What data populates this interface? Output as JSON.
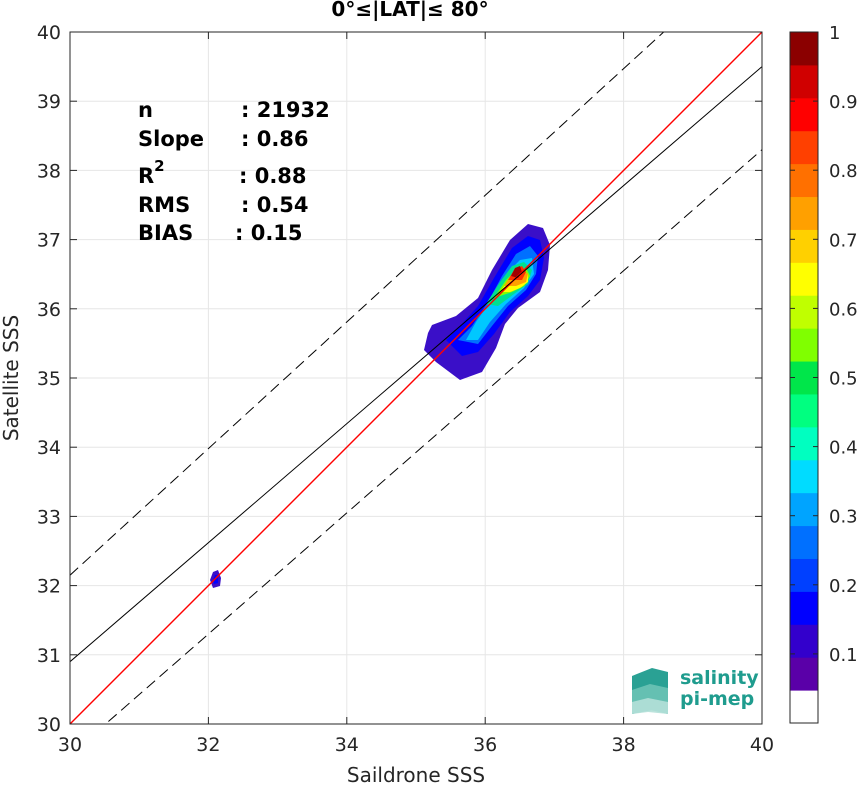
{
  "chart_data": {
    "type": "heatmap",
    "title": "0°≤|LAT|≤ 80°",
    "xlabel": "Saildrone SSS",
    "ylabel": "Satellite SSS",
    "xlim": [
      30,
      40
    ],
    "ylim": [
      30,
      40
    ],
    "x_ticks": [
      30,
      32,
      34,
      36,
      38,
      40
    ],
    "y_ticks": [
      30,
      31,
      32,
      33,
      34,
      35,
      36,
      37,
      38,
      39,
      40
    ],
    "grid": true,
    "stats": [
      {
        "label": "n",
        "value": ": 21932"
      },
      {
        "label": "Slope",
        "value": ": 0.86"
      },
      {
        "label": "R",
        "superscript": "2",
        "value": ": 0.88"
      },
      {
        "label": "RMS",
        "value": ": 0.54"
      },
      {
        "label": "BIAS",
        "value": ": 0.15"
      }
    ],
    "lines": [
      {
        "name": "one-to-one",
        "color": "#ff0000",
        "style": "solid",
        "points": [
          [
            30,
            30
          ],
          [
            40,
            40
          ]
        ]
      },
      {
        "name": "regression",
        "color": "#000000",
        "style": "solid",
        "points": [
          [
            30,
            30.9
          ],
          [
            40,
            39.5
          ]
        ]
      },
      {
        "name": "upper-bound",
        "color": "#000000",
        "style": "dashed",
        "points": [
          [
            30,
            32.15
          ],
          [
            40,
            41.3
          ]
        ]
      },
      {
        "name": "lower-bound",
        "color": "#000000",
        "style": "dashed",
        "points": [
          [
            30,
            29.55
          ],
          [
            40,
            38.3
          ]
        ]
      }
    ],
    "density_peak": {
      "x": 36.5,
      "y": 36.5
    },
    "colorbar": {
      "range": [
        0,
        1
      ],
      "tick_labels": [
        "0.1",
        "0.2",
        "0.3",
        "0.4",
        "0.5",
        "0.6",
        "0.7",
        "0.8",
        "0.9",
        "1"
      ],
      "tick_values": [
        0.1,
        0.2,
        0.3,
        0.4,
        0.5,
        0.6,
        0.7,
        0.8,
        0.9,
        1.0
      ],
      "colors": [
        "#ffffff",
        "#5a00a8",
        "#3300cc",
        "#0000ff",
        "#0040ff",
        "#0070ff",
        "#00a4ff",
        "#00dcff",
        "#00ffc0",
        "#00ff80",
        "#00e64a",
        "#80ff00",
        "#c0ff00",
        "#ffff00",
        "#ffd000",
        "#ffa000",
        "#ff7000",
        "#ff4000",
        "#ff0000",
        "#d00000",
        "#8b0000"
      ]
    }
  },
  "logo": {
    "line1": "salinity",
    "line2": "pi-mep"
  }
}
